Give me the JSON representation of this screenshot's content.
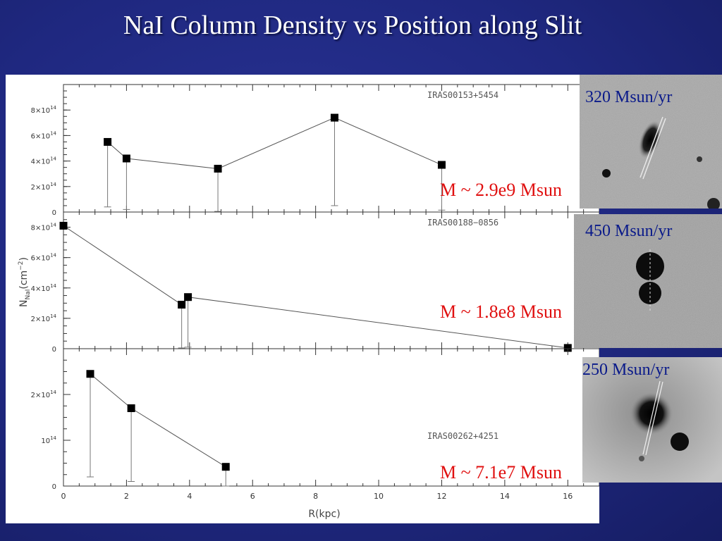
{
  "slide": {
    "title": "NaI Column Density vs Position along Slit"
  },
  "chart_data": [
    {
      "type": "line",
      "name": "IRAS00153+5454",
      "label": "IRAS00153+5454",
      "mass": "M ~ 2.9e9 Msun",
      "sfr": "320 Msun/yr",
      "x": [
        1.4,
        2.0,
        4.9,
        8.6,
        12.0
      ],
      "y": [
        550000000000000.0,
        420000000000000.0,
        340000000000000.0,
        740000000000000.0,
        370000000000000.0
      ],
      "lower": [
        40000000000000.0,
        20000000000000.0,
        5000000000000.0,
        50000000000000.0,
        15000000000000.0
      ],
      "ylim": [
        0,
        1000000000000000.0
      ],
      "yticks": [
        {
          "v": 0,
          "mant": "0",
          "exp": ""
        },
        {
          "v": 200000000000000.0,
          "mant": "2×10",
          "exp": "14"
        },
        {
          "v": 400000000000000.0,
          "mant": "4×10",
          "exp": "14"
        },
        {
          "v": 600000000000000.0,
          "mant": "6×10",
          "exp": "14"
        },
        {
          "v": 800000000000000.0,
          "mant": "8×10",
          "exp": "14"
        }
      ]
    },
    {
      "type": "line",
      "name": "IRAS00188-0856",
      "label": "IRAS00188−0856",
      "mass": "M ~ 1.8e8 Msun",
      "sfr": "450 Msun/yr",
      "x": [
        0.0,
        3.75,
        3.95,
        16.0
      ],
      "y": [
        810000000000000.0,
        290000000000000.0,
        340000000000000.0,
        5000000000000.0
      ],
      "lower": [
        810000000000000.0,
        5000000000000.0,
        10000000000000.0,
        5000000000000.0
      ],
      "ylim": [
        0,
        900000000000000.0
      ],
      "yticks": [
        {
          "v": 0,
          "mant": "0",
          "exp": ""
        },
        {
          "v": 200000000000000.0,
          "mant": "2×10",
          "exp": "14"
        },
        {
          "v": 400000000000000.0,
          "mant": "4×10",
          "exp": "14"
        },
        {
          "v": 600000000000000.0,
          "mant": "6×10",
          "exp": "14"
        },
        {
          "v": 800000000000000.0,
          "mant": "8×10",
          "exp": "14"
        }
      ]
    },
    {
      "type": "line",
      "name": "IRAS00262+4251",
      "label": "IRAS00262+4251",
      "mass": "M ~ 7.1e7 Msun",
      "sfr": "250 Msun/yr",
      "x": [
        0.85,
        2.15,
        5.15
      ],
      "y": [
        245000000000000.0,
        170000000000000.0,
        42000000000000.0
      ],
      "lower": [
        20000000000000.0,
        10000000000000.0,
        0.0
      ],
      "ylim": [
        0,
        300000000000000.0
      ],
      "yticks": [
        {
          "v": 0,
          "mant": "0",
          "exp": ""
        },
        {
          "v": 100000000000000.0,
          "mant": "10",
          "exp": "14"
        },
        {
          "v": 200000000000000.0,
          "mant": "2×10",
          "exp": "14"
        }
      ]
    }
  ],
  "axes": {
    "xlabel": "R(kpc)",
    "ylabel_main": "N",
    "ylabel_sub": "NaI",
    "ylabel_unit": "(cm",
    "ylabel_exp": "−2",
    "ylabel_close": ")",
    "xlim": [
      0,
      17
    ],
    "xticks": [
      "0",
      "2",
      "4",
      "6",
      "8",
      "10",
      "12",
      "14",
      "16"
    ]
  },
  "colors": {
    "background": "#1f2880",
    "title": "#ffffff",
    "mass": "#e01010",
    "sfr": "#0a1a8a",
    "plot_line": "#555555",
    "marker": "#000000"
  }
}
